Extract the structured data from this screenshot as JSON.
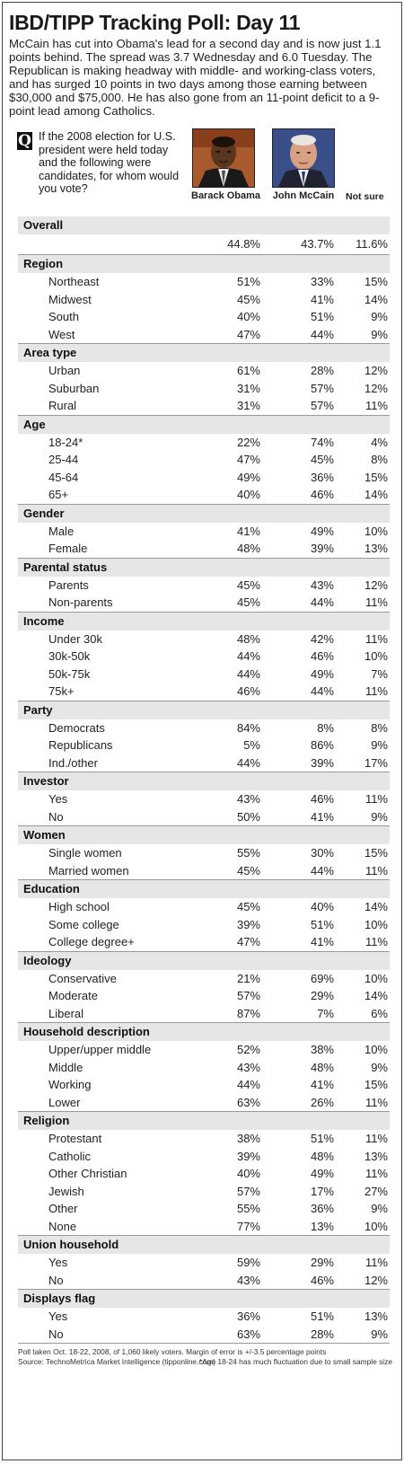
{
  "title": "IBD/TIPP Tracking Poll: Day 11",
  "intro": "McCain has cut into Obama's lead for a second day and is now just 1.1 points behind. The spread was 3.7 Wednesday and 6.0 Tuesday. The Republican is making headway with middle- and working-class voters, and has surged 10 points in two days among those earning between $30,000 and $75,000. He has also gone from an 11-point deficit to a 9-point lead among Catholics.",
  "question": {
    "icon": "Q",
    "text": "If the 2008 election for U.S. president were held today and the following were candidates, for whom would you vote?"
  },
  "columns": {
    "c1": "Barack Obama",
    "c2": "John McCain",
    "c3": "Not sure"
  },
  "sections": [
    {
      "title": "Overall",
      "rows": [
        {
          "label": "",
          "v1": "44.8%",
          "v2": "43.7%",
          "v3": "11.6%"
        }
      ]
    },
    {
      "title": "Region",
      "rows": [
        {
          "label": "Northeast",
          "v1": "51%",
          "v2": "33%",
          "v3": "15%"
        },
        {
          "label": "Midwest",
          "v1": "45%",
          "v2": "41%",
          "v3": "14%"
        },
        {
          "label": "South",
          "v1": "40%",
          "v2": "51%",
          "v3": "9%"
        },
        {
          "label": "West",
          "v1": "47%",
          "v2": "44%",
          "v3": "9%"
        }
      ]
    },
    {
      "title": "Area type",
      "rows": [
        {
          "label": "Urban",
          "v1": "61%",
          "v2": "28%",
          "v3": "12%"
        },
        {
          "label": "Suburban",
          "v1": "31%",
          "v2": "57%",
          "v3": "12%"
        },
        {
          "label": "Rural",
          "v1": "31%",
          "v2": "57%",
          "v3": "11%"
        }
      ]
    },
    {
      "title": "Age",
      "rows": [
        {
          "label": "18-24*",
          "v1": "22%",
          "v2": "74%",
          "v3": "4%"
        },
        {
          "label": "25-44",
          "v1": "47%",
          "v2": "45%",
          "v3": "8%"
        },
        {
          "label": "45-64",
          "v1": "49%",
          "v2": "36%",
          "v3": "15%"
        },
        {
          "label": "65+",
          "v1": "40%",
          "v2": "46%",
          "v3": "14%"
        }
      ]
    },
    {
      "title": "Gender",
      "rows": [
        {
          "label": "Male",
          "v1": "41%",
          "v2": "49%",
          "v3": "10%"
        },
        {
          "label": "Female",
          "v1": "48%",
          "v2": "39%",
          "v3": "13%"
        }
      ]
    },
    {
      "title": "Parental status",
      "rows": [
        {
          "label": "Parents",
          "v1": "45%",
          "v2": "43%",
          "v3": "12%"
        },
        {
          "label": "Non-parents",
          "v1": "45%",
          "v2": "44%",
          "v3": "11%"
        }
      ]
    },
    {
      "title": "Income",
      "rows": [
        {
          "label": "Under 30k",
          "v1": "48%",
          "v2": "42%",
          "v3": "11%"
        },
        {
          "label": "30k-50k",
          "v1": "44%",
          "v2": "46%",
          "v3": "10%"
        },
        {
          "label": "50k-75k",
          "v1": "44%",
          "v2": "49%",
          "v3": "7%"
        },
        {
          "label": "75k+",
          "v1": "46%",
          "v2": "44%",
          "v3": "11%"
        }
      ]
    },
    {
      "title": "Party",
      "rows": [
        {
          "label": "Democrats",
          "v1": "84%",
          "v2": "8%",
          "v3": "8%"
        },
        {
          "label": "Republicans",
          "v1": "5%",
          "v2": "86%",
          "v3": "9%"
        },
        {
          "label": "Ind./other",
          "v1": "44%",
          "v2": "39%",
          "v3": "17%"
        }
      ]
    },
    {
      "title": "Investor",
      "rows": [
        {
          "label": "Yes",
          "v1": "43%",
          "v2": "46%",
          "v3": "11%"
        },
        {
          "label": "No",
          "v1": "50%",
          "v2": "41%",
          "v3": "9%"
        }
      ]
    },
    {
      "title": "Women",
      "rows": [
        {
          "label": "Single women",
          "v1": "55%",
          "v2": "30%",
          "v3": "15%"
        },
        {
          "label": "Married women",
          "v1": "45%",
          "v2": "44%",
          "v3": "11%"
        }
      ]
    },
    {
      "title": "Education",
      "rows": [
        {
          "label": "High school",
          "v1": "45%",
          "v2": "40%",
          "v3": "14%"
        },
        {
          "label": "Some college",
          "v1": "39%",
          "v2": "51%",
          "v3": "10%"
        },
        {
          "label": "College degree+",
          "v1": "47%",
          "v2": "41%",
          "v3": "11%"
        }
      ]
    },
    {
      "title": "Ideology",
      "rows": [
        {
          "label": "Conservative",
          "v1": "21%",
          "v2": "69%",
          "v3": "10%"
        },
        {
          "label": "Moderate",
          "v1": "57%",
          "v2": "29%",
          "v3": "14%"
        },
        {
          "label": "Liberal",
          "v1": "87%",
          "v2": "7%",
          "v3": "6%"
        }
      ]
    },
    {
      "title": "Household description",
      "rows": [
        {
          "label": "Upper/upper middle",
          "v1": "52%",
          "v2": "38%",
          "v3": "10%"
        },
        {
          "label": "Middle",
          "v1": "43%",
          "v2": "48%",
          "v3": "9%"
        },
        {
          "label": "Working",
          "v1": "44%",
          "v2": "41%",
          "v3": "15%"
        },
        {
          "label": "Lower",
          "v1": "63%",
          "v2": "26%",
          "v3": "11%"
        }
      ]
    },
    {
      "title": "Religion",
      "rows": [
        {
          "label": "Protestant",
          "v1": "38%",
          "v2": "51%",
          "v3": "11%"
        },
        {
          "label": "Catholic",
          "v1": "39%",
          "v2": "48%",
          "v3": "13%"
        },
        {
          "label": "Other Christian",
          "v1": "40%",
          "v2": "49%",
          "v3": "11%"
        },
        {
          "label": "Jewish",
          "v1": "57%",
          "v2": "17%",
          "v3": "27%"
        },
        {
          "label": "Other",
          "v1": "55%",
          "v2": "36%",
          "v3": "9%"
        },
        {
          "label": "None",
          "v1": "77%",
          "v2": "13%",
          "v3": "10%"
        }
      ]
    },
    {
      "title": "Union household",
      "rows": [
        {
          "label": "Yes",
          "v1": "59%",
          "v2": "29%",
          "v3": "11%"
        },
        {
          "label": "No",
          "v1": "43%",
          "v2": "46%",
          "v3": "12%"
        }
      ]
    },
    {
      "title": "Displays flag",
      "rows": [
        {
          "label": "Yes",
          "v1": "36%",
          "v2": "51%",
          "v3": "13%"
        },
        {
          "label": "No",
          "v1": "63%",
          "v2": "28%",
          "v3": "9%"
        }
      ]
    }
  ],
  "footer": {
    "line1": "Poll taken Oct. 18-22, 2008, of 1,060 likely voters. Margin of error is +/-3.5 percentage points",
    "line2": "Source: TechnoMetrica Market Intelligence (tipponline.com)",
    "note": "*Age 18-24 has much fluctuation due to small sample size"
  }
}
